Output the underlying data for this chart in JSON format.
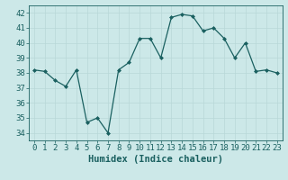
{
  "x": [
    0,
    1,
    2,
    3,
    4,
    5,
    6,
    7,
    8,
    9,
    10,
    11,
    12,
    13,
    14,
    15,
    16,
    17,
    18,
    19,
    20,
    21,
    22,
    23
  ],
  "y": [
    38.2,
    38.1,
    37.5,
    37.1,
    38.2,
    34.7,
    35.0,
    34.0,
    38.2,
    38.7,
    40.3,
    40.3,
    39.0,
    41.7,
    41.9,
    41.8,
    40.8,
    41.0,
    40.3,
    39.0,
    40.0,
    38.1,
    38.2,
    38.0
  ],
  "xlabel": "Humidex (Indice chaleur)",
  "ylim": [
    33.5,
    42.5
  ],
  "xlim": [
    -0.5,
    23.5
  ],
  "yticks": [
    34,
    35,
    36,
    37,
    38,
    39,
    40,
    41,
    42
  ],
  "xticks": [
    0,
    1,
    2,
    3,
    4,
    5,
    6,
    7,
    8,
    9,
    10,
    11,
    12,
    13,
    14,
    15,
    16,
    17,
    18,
    19,
    20,
    21,
    22,
    23
  ],
  "bg_color": "#cce8e8",
  "line_color": "#1a6060",
  "grid_color": "#b8d8d8",
  "text_color": "#1a6060",
  "tick_label_size": 6.5,
  "xlabel_size": 7.5
}
